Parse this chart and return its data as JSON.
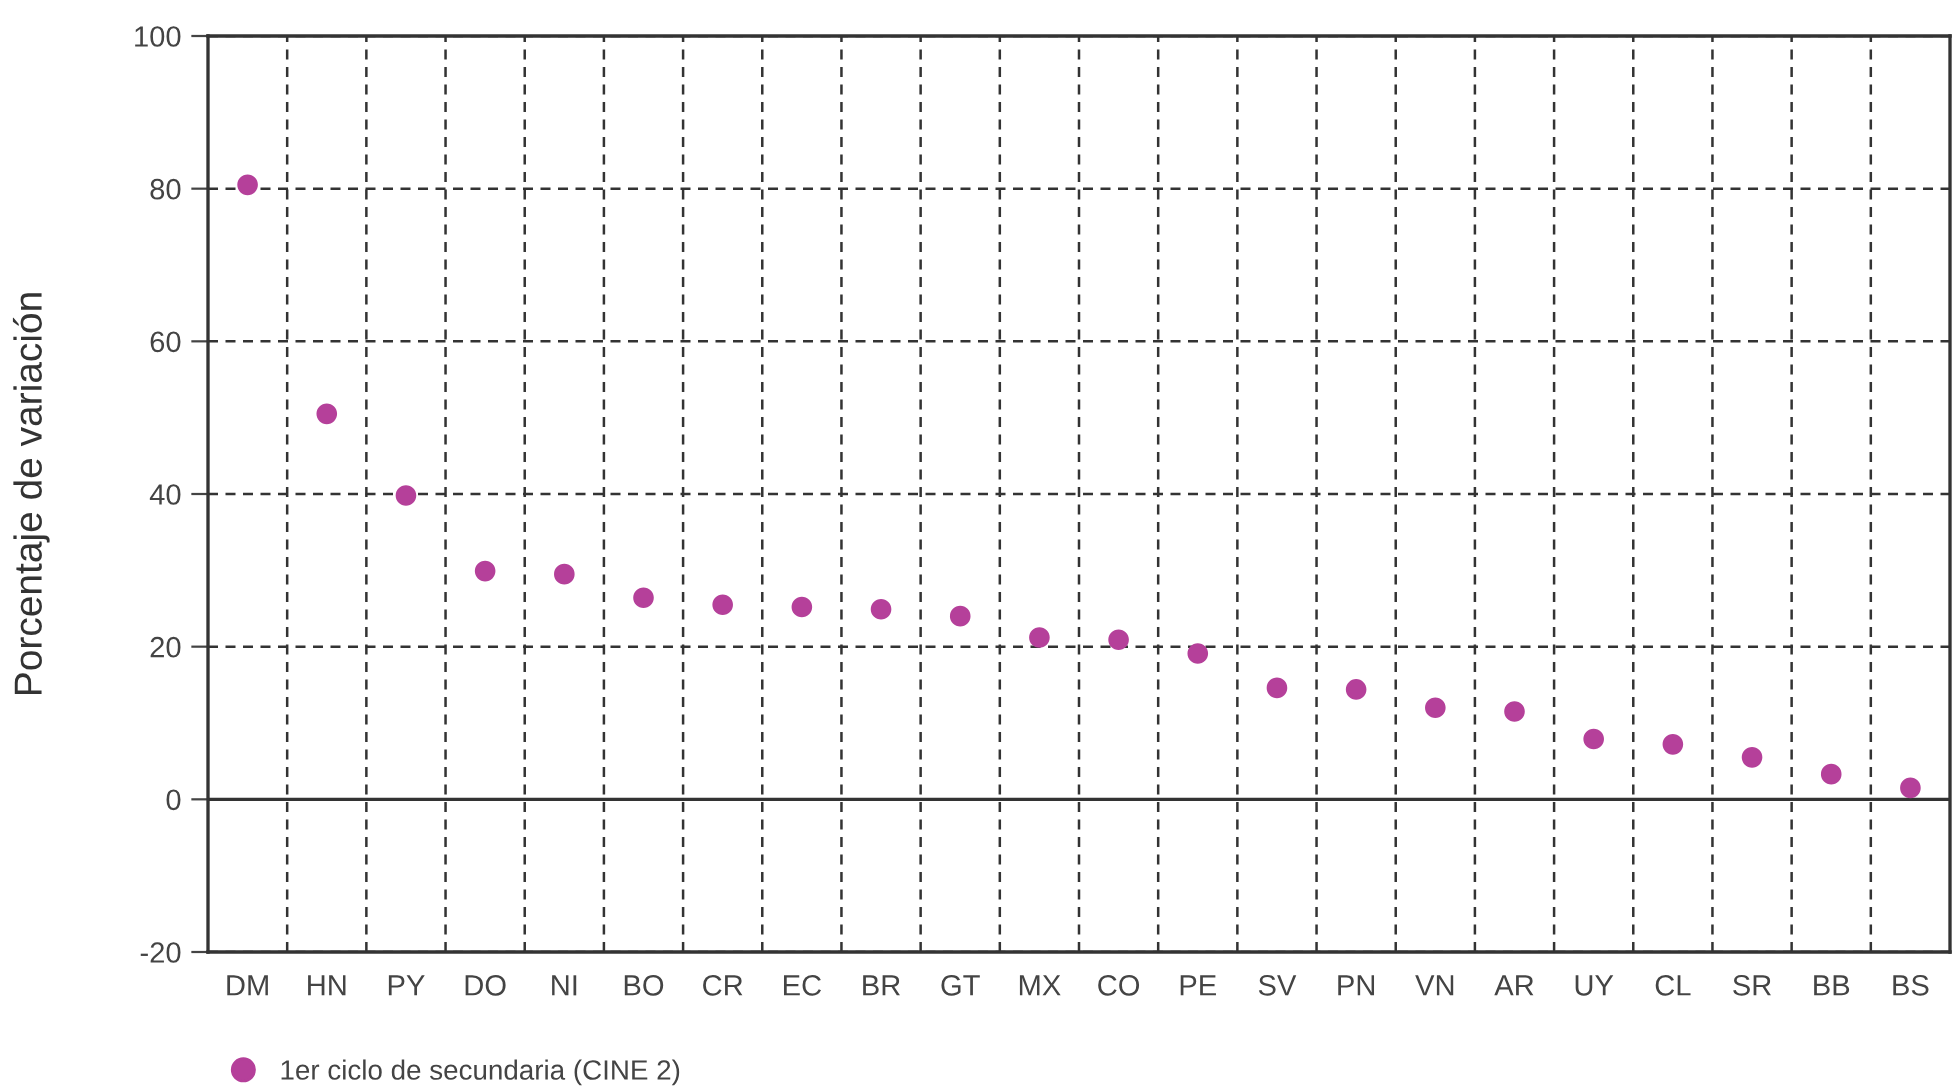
{
  "chart_data": {
    "type": "scatter",
    "ylabel": "Porcentaje de variación",
    "categories": [
      "DM",
      "HN",
      "PY",
      "DO",
      "NI",
      "BO",
      "CR",
      "EC",
      "BR",
      "GT",
      "MX",
      "CO",
      "PE",
      "SV",
      "PN",
      "VN",
      "AR",
      "UY",
      "CL",
      "SR",
      "BB",
      "BS"
    ],
    "series": [
      {
        "name": "1er ciclo de secundaria (CINE 2)",
        "color": "#b5409a",
        "values": [
          80.5,
          50.5,
          39.8,
          29.9,
          29.5,
          26.4,
          25.5,
          25.2,
          24.9,
          24.0,
          21.2,
          20.9,
          19.1,
          14.6,
          14.4,
          12.0,
          11.5,
          7.9,
          7.2,
          5.5,
          3.3,
          1.5
        ]
      }
    ],
    "ylim": [
      -20,
      100
    ],
    "yticks": [
      -20,
      0,
      20,
      40,
      60,
      80,
      100
    ],
    "grid": true,
    "line_style": "dashed",
    "marker": "circle",
    "legend": "bottom left",
    "ref_lines": [
      {
        "axis": "y",
        "value": 0,
        "color": "#333333",
        "line_style": "solid"
      }
    ]
  }
}
